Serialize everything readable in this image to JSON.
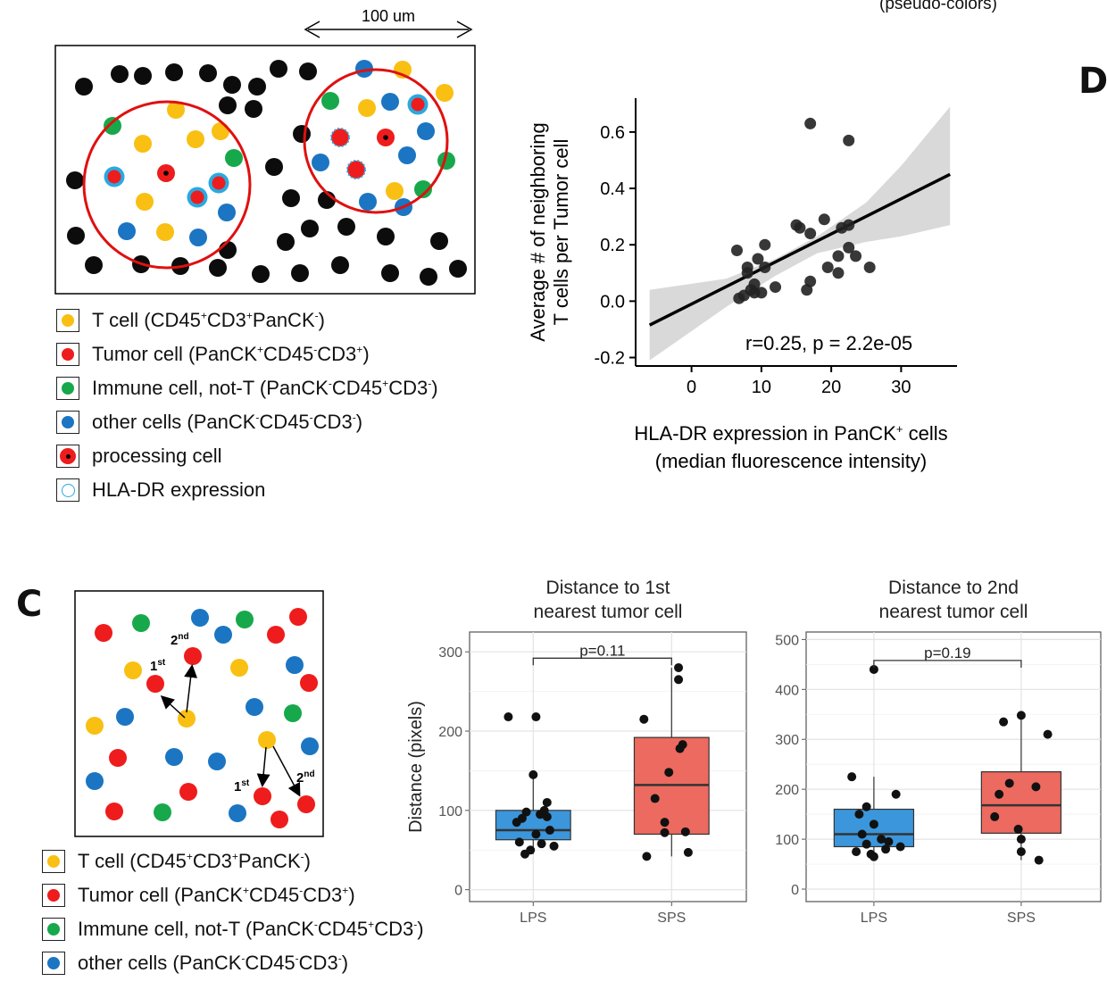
{
  "top_right_note": "(pseudo-colors)",
  "panel_d_letter": "D",
  "panel_c_letter": "C",
  "scale_label": "100 um",
  "colors": {
    "t_cell": "#f9bf12",
    "tumor_cell": "#ee1c1c",
    "immune_cell": "#17a84b",
    "other_cell": "#1b75c2",
    "hla_ring": "#29a9e0",
    "black_cell": "#0c0c0c",
    "box_lps": "#3b96db",
    "box_sps": "#ec6a5f"
  },
  "legend_a": [
    {
      "name": "T cell",
      "text": "T cell (CD45<sup>+</sup>CD3<sup>+</sup>PanCK<sup>-</sup>)",
      "marker": "t_cell"
    },
    {
      "name": "Tumor cell",
      "text": "Tumor cell (PanCK<sup>+</sup>CD45<sup>-</sup>CD3<sup>+</sup>)",
      "marker": "tumor_cell"
    },
    {
      "name": "Immune cell",
      "text": "Immune cell, not-T (PanCK<sup>-</sup>CD45<sup>+</sup>CD3<sup>-</sup>)",
      "marker": "immune_cell"
    },
    {
      "name": "other cells",
      "text": "other cells (PanCK<sup>-</sup>CD45<sup>-</sup>CD3<sup>-</sup>)",
      "marker": "other_cell"
    },
    {
      "name": "processing cell",
      "text": "processing cell",
      "marker": "processing"
    },
    {
      "name": "HLA-DR expression",
      "text": "HLA-DR expression",
      "marker": "hla"
    }
  ],
  "legend_c": [
    {
      "name": "T cell",
      "text": "T cell (CD45<sup>+</sup>CD3<sup>+</sup>PanCK<sup>-</sup>)",
      "marker": "t_cell"
    },
    {
      "name": "Tumor cell",
      "text": "Tumor cell (PanCK<sup>+</sup>CD45<sup>-</sup>CD3<sup>+</sup>)",
      "marker": "tumor_cell"
    },
    {
      "name": "Immune cell",
      "text": "Immune cell, not-T (PanCK<sup>-</sup>CD45<sup>+</sup>CD3<sup>-</sup>)",
      "marker": "immune_cell"
    },
    {
      "name": "other cells",
      "text": "other cells (PanCK<sup>-</sup>CD45<sup>-</sup>CD3<sup>-</sup>)",
      "marker": "other_cell"
    }
  ],
  "diagram_c_labels": {
    "first": "1",
    "second": "2",
    "first_sup": "st",
    "second_sup": "nd"
  },
  "chart_data": [
    {
      "type": "scatter",
      "title": "",
      "ylabel_line1": "Average # of neighboring",
      "ylabel_line2": "T cells per Tumor cell",
      "xlabel_line1": "HLA-DR expression in PanCK",
      "xlabel_sup": "+",
      "xlabel_line1_tail": " cells",
      "xlabel_line2": "(median fluorescence intensity)",
      "annotation": "r=0.25, p = 2.2e-05",
      "xlim": [
        -8,
        38
      ],
      "ylim": [
        -0.23,
        0.72
      ],
      "xticks": [
        0,
        10,
        20,
        30
      ],
      "yticks": [
        -0.2,
        0.0,
        0.2,
        0.4,
        0.6
      ],
      "ytick_labels": [
        "-0.2",
        "0.0",
        "0.2",
        "0.4",
        "0.6"
      ],
      "fit": {
        "x0": -6,
        "y0": -0.085,
        "x1": 37,
        "y1": 0.45
      },
      "ci_upper": [
        [
          -6,
          0.04
        ],
        [
          5,
          0.08
        ],
        [
          12,
          0.15
        ],
        [
          18,
          0.23
        ],
        [
          25,
          0.35
        ],
        [
          30,
          0.48
        ],
        [
          37,
          0.69
        ]
      ],
      "ci_lower": [
        [
          -6,
          -0.21
        ],
        [
          5,
          -0.02
        ],
        [
          12,
          0.09
        ],
        [
          18,
          0.17
        ],
        [
          25,
          0.21
        ],
        [
          30,
          0.23
        ],
        [
          37,
          0.27
        ]
      ],
      "points": [
        [
          17,
          0.63
        ],
        [
          22.5,
          0.57
        ],
        [
          6.5,
          0.18
        ],
        [
          10.5,
          0.2
        ],
        [
          8,
          0.12
        ],
        [
          9.5,
          0.15
        ],
        [
          10.5,
          0.12
        ],
        [
          15,
          0.27
        ],
        [
          15.5,
          0.26
        ],
        [
          19,
          0.29
        ],
        [
          17,
          0.24
        ],
        [
          21.5,
          0.26
        ],
        [
          22.5,
          0.27
        ],
        [
          22.5,
          0.19
        ],
        [
          21,
          0.16
        ],
        [
          23.5,
          0.16
        ],
        [
          25.5,
          0.12
        ],
        [
          21,
          0.1
        ],
        [
          19.5,
          0.12
        ],
        [
          17,
          0.07
        ],
        [
          16.5,
          0.04
        ],
        [
          12,
          0.05
        ],
        [
          9,
          0.06
        ],
        [
          8.5,
          0.04
        ],
        [
          7.5,
          0.02
        ],
        [
          9,
          0.03
        ],
        [
          10,
          0.03
        ],
        [
          6.8,
          0.01
        ],
        [
          8,
          0.1
        ]
      ]
    },
    {
      "type": "box",
      "title_line1": "Distance to 1st",
      "title_line2": "nearest tumor cell",
      "ylabel": "Distance (pixels)",
      "ylim": [
        -15,
        325
      ],
      "yticks": [
        0,
        100,
        200,
        300
      ],
      "categories": [
        "LPS",
        "SPS"
      ],
      "pvalue": "p=0.11",
      "boxes": [
        {
          "name": "LPS",
          "whisker_low": 45,
          "q1": 63,
          "median": 75,
          "q3": 100,
          "whisker_high": 145,
          "points": [
            [
              0.02,
              218
            ],
            [
              -0.18,
              218
            ],
            [
              0.0,
              145
            ],
            [
              -0.05,
              98
            ],
            [
              0.05,
              95
            ],
            [
              -0.08,
              90
            ],
            [
              0.1,
              110
            ],
            [
              0.08,
              100
            ],
            [
              -0.12,
              85
            ],
            [
              0.12,
              75
            ],
            [
              0.02,
              70
            ],
            [
              -0.1,
              60
            ],
            [
              0.06,
              58
            ],
            [
              0.15,
              55
            ],
            [
              -0.06,
              45
            ],
            [
              -0.02,
              50
            ],
            [
              0.1,
              92
            ]
          ]
        },
        {
          "name": "SPS",
          "whisker_low": 42,
          "q1": 70,
          "median": 132,
          "q3": 192,
          "whisker_high": 280,
          "points": [
            [
              0.05,
              280
            ],
            [
              0.05,
              265
            ],
            [
              -0.2,
              215
            ],
            [
              0.08,
              183
            ],
            [
              0.06,
              178
            ],
            [
              -0.02,
              148
            ],
            [
              -0.12,
              115
            ],
            [
              -0.05,
              85
            ],
            [
              0.1,
              73
            ],
            [
              -0.05,
              72
            ],
            [
              -0.18,
              42
            ],
            [
              0.12,
              47
            ]
          ]
        }
      ]
    },
    {
      "type": "box",
      "title_line1": "Distance to 2nd",
      "title_line2": "nearest tumor cell",
      "ylabel": "",
      "ylim": [
        -25,
        515
      ],
      "yticks": [
        0,
        100,
        200,
        300,
        400,
        500
      ],
      "categories": [
        "LPS",
        "SPS"
      ],
      "pvalue": "p=0.19",
      "boxes": [
        {
          "name": "LPS",
          "whisker_low": 65,
          "q1": 85,
          "median": 110,
          "q3": 160,
          "whisker_high": 225,
          "points": [
            [
              0.0,
              440
            ],
            [
              -0.15,
              225
            ],
            [
              0.15,
              190
            ],
            [
              -0.05,
              165
            ],
            [
              -0.1,
              150
            ],
            [
              0.0,
              130
            ],
            [
              0.05,
              100
            ],
            [
              -0.05,
              90
            ],
            [
              0.18,
              85
            ],
            [
              -0.12,
              75
            ],
            [
              0.08,
              80
            ],
            [
              -0.02,
              70
            ],
            [
              0.0,
              65
            ],
            [
              -0.08,
              110
            ],
            [
              0.1,
              95
            ]
          ]
        },
        {
          "name": "SPS",
          "whisker_low": 58,
          "q1": 112,
          "median": 168,
          "q3": 235,
          "whisker_high": 340,
          "points": [
            [
              0.0,
              348
            ],
            [
              -0.12,
              335
            ],
            [
              0.18,
              310
            ],
            [
              -0.08,
              212
            ],
            [
              0.1,
              205
            ],
            [
              -0.15,
              190
            ],
            [
              -0.18,
              145
            ],
            [
              -0.02,
              120
            ],
            [
              0.0,
              100
            ],
            [
              0.0,
              75
            ],
            [
              0.12,
              58
            ]
          ]
        }
      ]
    }
  ]
}
